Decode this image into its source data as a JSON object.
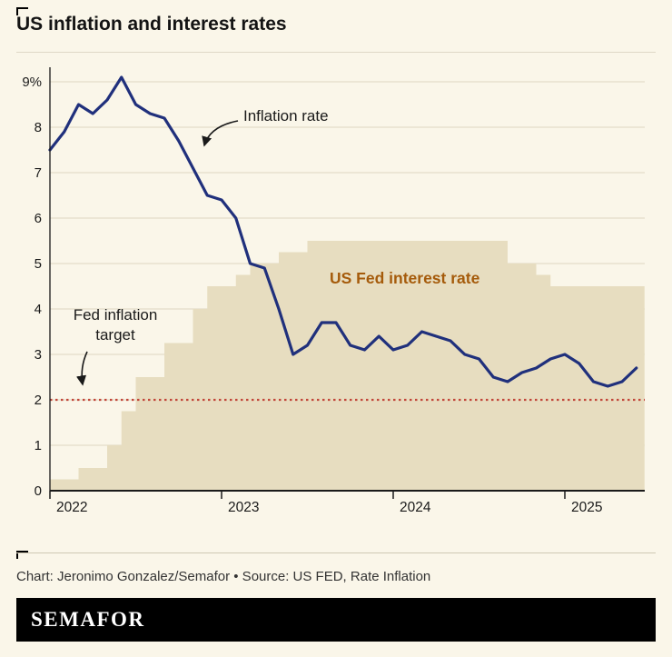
{
  "header": {
    "title": "US inflation and interest rates"
  },
  "chart_data": {
    "type": "line",
    "title": "US inflation and interest rates",
    "x_frequency": "monthly",
    "x_start": "2022-01",
    "x_end": "2025-06",
    "x_tick_labels": [
      "2022",
      "2023",
      "2024",
      "2025"
    ],
    "x_tick_month_index": [
      0,
      12,
      24,
      36
    ],
    "y_tick_labels": [
      "0",
      "1",
      "2",
      "3",
      "4",
      "5",
      "6",
      "7",
      "8",
      "9%"
    ],
    "ylim": [
      0,
      9.6
    ],
    "grid": "horizontal",
    "series": [
      {
        "name": "Inflation rate",
        "type": "line",
        "color": "#20307c",
        "values": [
          7.5,
          7.9,
          8.5,
          8.3,
          8.6,
          9.1,
          8.5,
          8.3,
          8.2,
          7.7,
          7.1,
          6.5,
          6.4,
          6.0,
          5.0,
          4.9,
          4.0,
          3.0,
          3.2,
          3.7,
          3.7,
          3.2,
          3.1,
          3.4,
          3.1,
          3.2,
          3.5,
          3.4,
          3.3,
          3.0,
          2.9,
          2.5,
          2.4,
          2.6,
          2.7,
          2.9,
          3.0,
          2.8,
          2.4,
          2.3,
          2.4,
          2.7
        ]
      },
      {
        "name": "US Fed interest rate",
        "type": "step-area",
        "color": "#e7ddc0",
        "label_color": "#a55b0b",
        "values": [
          0.25,
          0.25,
          0.5,
          0.5,
          1.0,
          1.75,
          2.5,
          2.5,
          3.25,
          3.25,
          4.0,
          4.5,
          4.5,
          4.75,
          5.0,
          5.0,
          5.25,
          5.25,
          5.5,
          5.5,
          5.5,
          5.5,
          5.5,
          5.5,
          5.5,
          5.5,
          5.5,
          5.5,
          5.5,
          5.5,
          5.5,
          5.5,
          5.0,
          5.0,
          4.75,
          4.5,
          4.5,
          4.5,
          4.5,
          4.5,
          4.5,
          4.5
        ]
      }
    ],
    "reference_line": {
      "label": "Fed inflation target",
      "value": 2,
      "color": "#c2463a",
      "style": "dotted"
    },
    "annotations": {
      "inflation_label": "Inflation rate",
      "fed_rate_label": "US Fed interest rate",
      "target_label": "Fed inflation target"
    }
  },
  "footer": {
    "credit": "Chart: Jeronimo Gonzalez/Semafor • Source: US FED, Rate Inflation",
    "logo_text": "SEMAFOR"
  }
}
